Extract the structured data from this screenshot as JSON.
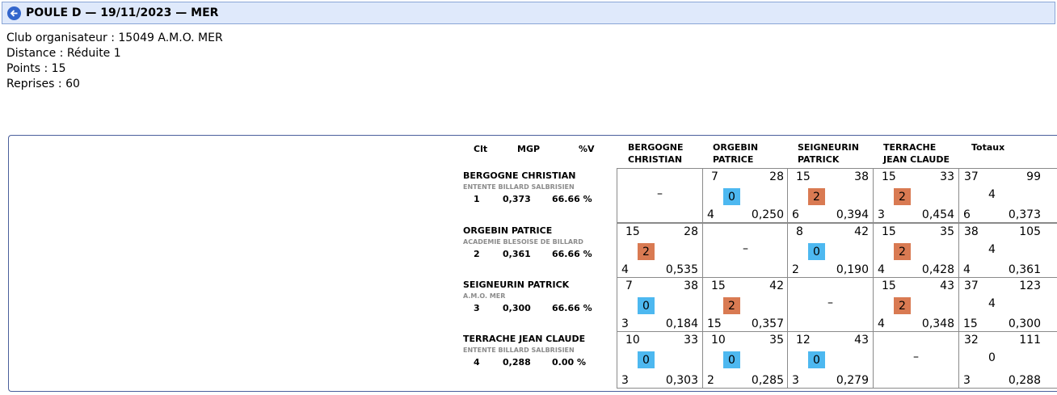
{
  "header": {
    "title": "POULE D — 19/11/2023 — MER"
  },
  "info": {
    "club": "Club organisateur : 15049 A.M.O. MER",
    "distance": "Distance : Réduite 1",
    "points": "Points : 15",
    "reprises": "Reprises : 60"
  },
  "table": {
    "headers": {
      "clt": "Clt",
      "mgp": "MGP",
      "pctv": "%V",
      "cols": [
        [
          "BERGOGNE",
          "CHRISTIAN"
        ],
        [
          "ORGEBIN",
          "PATRICE"
        ],
        [
          "SEIGNEURIN",
          "PATRICK"
        ],
        [
          "TERRACHE",
          "JEAN CLAUDE"
        ]
      ],
      "totaux": "Totaux"
    },
    "rows": [
      {
        "name": "BERGOGNE CHRISTIAN",
        "club": "ENTENTE BILLARD SALBRISIEN",
        "clt": "1",
        "mgp": "0,373",
        "pctv": "66.66 %",
        "cells": [
          null,
          {
            "a": "7",
            "b": "28",
            "pts": "0",
            "color": "blue",
            "c": "4",
            "d": "0,250"
          },
          {
            "a": "15",
            "b": "38",
            "pts": "2",
            "color": "orange",
            "c": "6",
            "d": "0,394"
          },
          {
            "a": "15",
            "b": "33",
            "pts": "2",
            "color": "orange",
            "c": "3",
            "d": "0,454"
          }
        ],
        "total": {
          "a": "37",
          "b": "99",
          "pts": "4",
          "c": "6",
          "d": "0,373"
        }
      },
      {
        "name": "ORGEBIN PATRICE",
        "club": "ACADEMIE BLESOISE DE BILLARD",
        "clt": "2",
        "mgp": "0,361",
        "pctv": "66.66 %",
        "cells": [
          {
            "a": "15",
            "b": "28",
            "pts": "2",
            "color": "orange",
            "c": "4",
            "d": "0,535"
          },
          null,
          {
            "a": "8",
            "b": "42",
            "pts": "0",
            "color": "blue",
            "c": "2",
            "d": "0,190"
          },
          {
            "a": "15",
            "b": "35",
            "pts": "2",
            "color": "orange",
            "c": "4",
            "d": "0,428"
          }
        ],
        "total": {
          "a": "38",
          "b": "105",
          "pts": "4",
          "c": "4",
          "d": "0,361"
        }
      },
      {
        "name": "SEIGNEURIN PATRICK",
        "club": "A.M.O. MER",
        "clt": "3",
        "mgp": "0,300",
        "pctv": "66.66 %",
        "cells": [
          {
            "a": "7",
            "b": "38",
            "pts": "0",
            "color": "blue",
            "c": "3",
            "d": "0,184"
          },
          {
            "a": "15",
            "b": "42",
            "pts": "2",
            "color": "orange",
            "c": "15",
            "d": "0,357"
          },
          null,
          {
            "a": "15",
            "b": "43",
            "pts": "2",
            "color": "orange",
            "c": "4",
            "d": "0,348"
          }
        ],
        "total": {
          "a": "37",
          "b": "123",
          "pts": "4",
          "c": "15",
          "d": "0,300"
        }
      },
      {
        "name": "TERRACHE JEAN CLAUDE",
        "club": "ENTENTE BILLARD SALBRISIEN",
        "clt": "4",
        "mgp": "0,288",
        "pctv": "0.00 %",
        "cells": [
          {
            "a": "10",
            "b": "33",
            "pts": "0",
            "color": "blue",
            "c": "3",
            "d": "0,303"
          },
          {
            "a": "10",
            "b": "35",
            "pts": "0",
            "color": "blue",
            "c": "2",
            "d": "0,285"
          },
          {
            "a": "12",
            "b": "43",
            "pts": "0",
            "color": "blue",
            "c": "3",
            "d": "0,279"
          },
          null
        ],
        "total": {
          "a": "32",
          "b": "111",
          "pts": "0",
          "c": "3",
          "d": "0,288"
        }
      }
    ],
    "empty_mark": "–"
  },
  "colors": {
    "blue": "#4db8f0",
    "orange": "#d97a52",
    "title_bg": "#dfe9fb"
  },
  "icons": {
    "back": "arrow-left-circle-icon"
  }
}
